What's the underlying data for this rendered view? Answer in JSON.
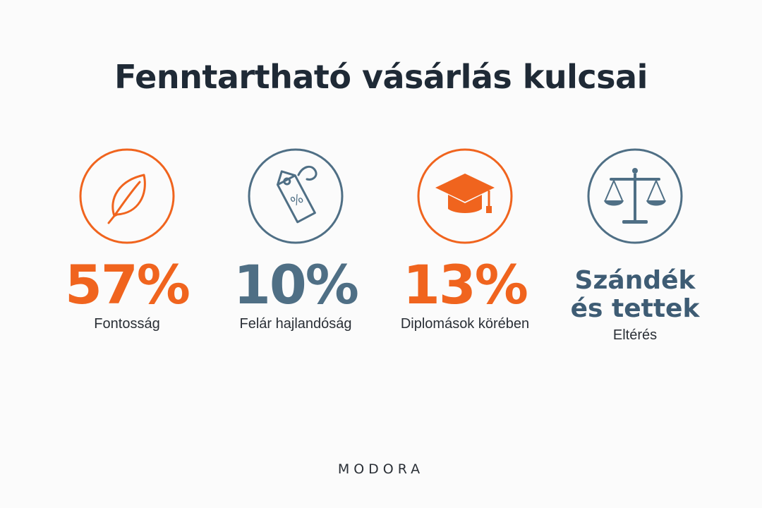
{
  "title": "Fenntartható vásárlás kulcsai",
  "colors": {
    "accent_orange": "#f0641e",
    "accent_blue": "#4f6f85",
    "text_dark": "#1f2a36",
    "background": "#fbfbfb"
  },
  "stats": [
    {
      "icon": "leaf-icon",
      "value": "57%",
      "label": "Fontosság",
      "color": "orange"
    },
    {
      "icon": "price-tag-icon",
      "value": "10%",
      "label": "Felár hajlandóság",
      "color": "blue"
    },
    {
      "icon": "graduation-cap-icon",
      "value": "13%",
      "label": "Diplomások körében",
      "color": "orange"
    },
    {
      "icon": "scales-icon",
      "value_line1": "Szándék",
      "value_line2": "és tettek",
      "label": "Eltérés",
      "color": "blue"
    }
  ],
  "tag_symbol": "%",
  "brand": "MODORA"
}
